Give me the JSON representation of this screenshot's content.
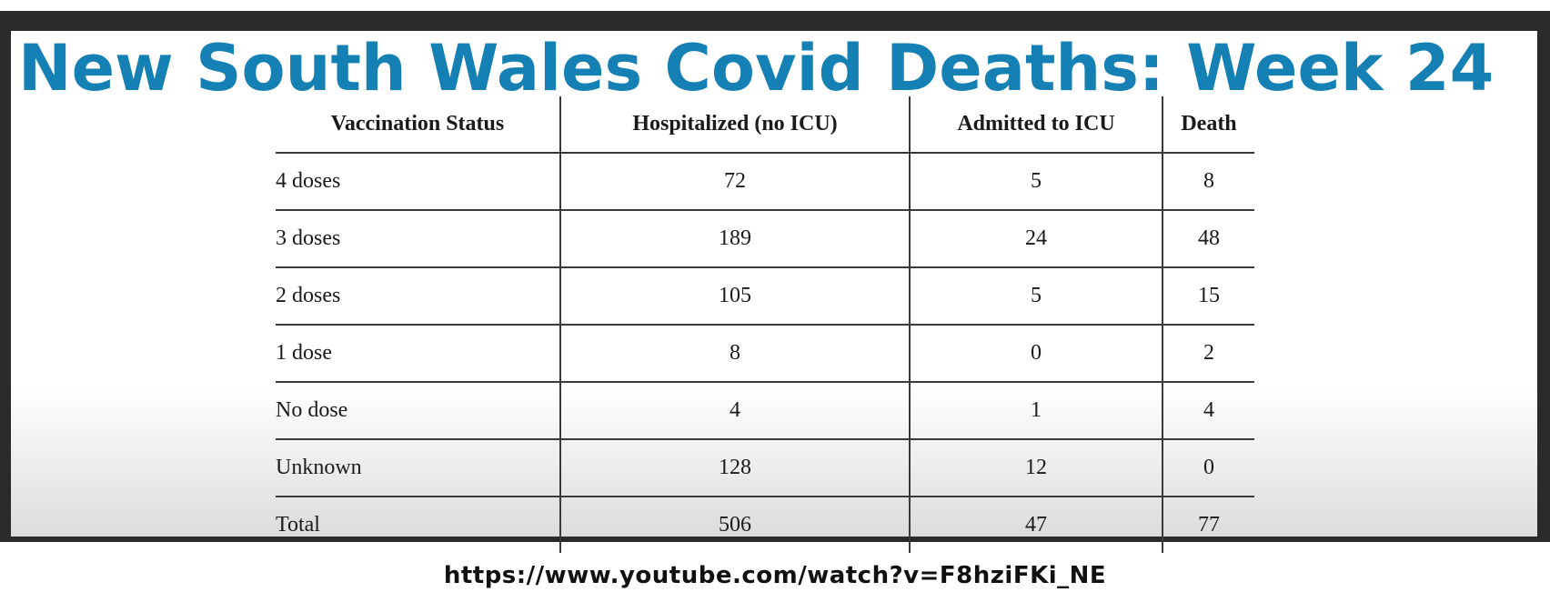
{
  "slide": {
    "title": "New South Wales Covid Deaths: Week 24"
  },
  "table": {
    "headers": [
      "Vaccination Status",
      "Hospitalized (no ICU)",
      "Admitted to ICU",
      "Death"
    ],
    "rows": [
      [
        "4 doses",
        "72",
        "5",
        "8"
      ],
      [
        "3 doses",
        "189",
        "24",
        "48"
      ],
      [
        "2 doses",
        "105",
        "5",
        "15"
      ],
      [
        "1 dose",
        "8",
        "0",
        "2"
      ],
      [
        "No dose",
        "4",
        "1",
        "4"
      ],
      [
        "Unknown",
        "128",
        "12",
        "0"
      ],
      [
        "Total",
        "506",
        "47",
        "77"
      ]
    ]
  },
  "footer": {
    "url": "https://www.youtube.com/watch?v=F8hziFKi_NE"
  },
  "colors": {
    "title": "#1580b4",
    "frame": "#2a2a2a"
  }
}
